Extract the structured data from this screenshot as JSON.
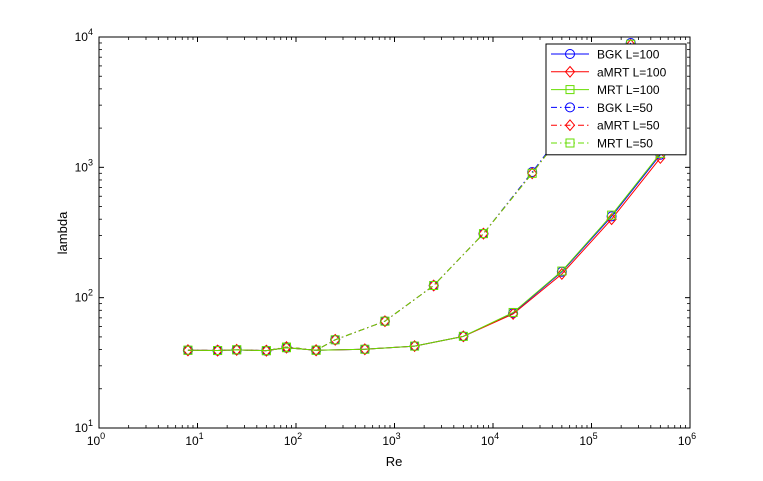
{
  "chart_data": {
    "type": "line",
    "xlabel": "Re",
    "ylabel": "lambda",
    "xscale": "log",
    "yscale": "log",
    "xlim": [
      1,
      1000000
    ],
    "ylim": [
      10,
      10000
    ],
    "grid": false,
    "legend_position": "top-right",
    "x_ticks": [
      {
        "value": 1,
        "base": "10",
        "exp": "0"
      },
      {
        "value": 10,
        "base": "10",
        "exp": "1"
      },
      {
        "value": 100,
        "base": "10",
        "exp": "2"
      },
      {
        "value": 1000,
        "base": "10",
        "exp": "3"
      },
      {
        "value": 10000,
        "base": "10",
        "exp": "4"
      },
      {
        "value": 100000,
        "base": "10",
        "exp": "5"
      },
      {
        "value": 1000000,
        "base": "10",
        "exp": "6"
      }
    ],
    "y_ticks": [
      {
        "value": 10,
        "base": "10",
        "exp": "1"
      },
      {
        "value": 100,
        "base": "10",
        "exp": "2"
      },
      {
        "value": 1000,
        "base": "10",
        "exp": "3"
      },
      {
        "value": 10000,
        "base": "10",
        "exp": "4"
      }
    ],
    "series": [
      {
        "name": "BGK L=100",
        "color": "#0000ff",
        "marker": "circle",
        "line": "solid",
        "x": [
          8,
          16,
          25,
          50,
          80,
          160,
          500,
          1600,
          5000,
          16000,
          50000,
          160000,
          500000
        ],
        "y": [
          39.5,
          39.3,
          39.8,
          39.2,
          41.3,
          39.5,
          40.2,
          42.5,
          50.5,
          76,
          158,
          420,
          1250
        ]
      },
      {
        "name": "aMRT L=100",
        "color": "#ff0000",
        "marker": "diamond",
        "line": "solid",
        "x": [
          8,
          16,
          25,
          50,
          80,
          160,
          500,
          1600,
          5000,
          16000,
          50000,
          160000,
          500000
        ],
        "y": [
          39.5,
          39.3,
          39.8,
          39.2,
          41.3,
          39.5,
          40.2,
          42.5,
          50.5,
          75,
          152,
          400,
          1180
        ]
      },
      {
        "name": "MRT L=100",
        "color": "#66dd00",
        "marker": "square",
        "line": "solid",
        "x": [
          8,
          16,
          25,
          50,
          80,
          160,
          500,
          1600,
          5000,
          16000,
          50000,
          160000,
          500000
        ],
        "y": [
          39.5,
          39.3,
          39.8,
          39.2,
          41.3,
          39.5,
          40.2,
          42.5,
          50.5,
          77,
          160,
          430,
          1280
        ]
      },
      {
        "name": "BGK L=50",
        "color": "#0000ff",
        "marker": "circle",
        "line": "dashdot",
        "x": [
          8,
          16,
          25,
          50,
          80,
          160,
          250,
          800,
          2500,
          8000,
          25000,
          250000
        ],
        "y": [
          39.5,
          39.3,
          39.8,
          39.2,
          41.8,
          39.5,
          47.5,
          66,
          124,
          310,
          920,
          9000
        ]
      },
      {
        "name": "aMRT L=50",
        "color": "#ff0000",
        "marker": "diamond",
        "line": "dashdot",
        "x": [
          8,
          16,
          25,
          50,
          80,
          160,
          250,
          800,
          2500,
          8000,
          25000,
          250000
        ],
        "y": [
          39.5,
          39.3,
          39.8,
          39.2,
          41.8,
          39.5,
          47.5,
          66,
          124,
          310,
          900,
          8700
        ]
      },
      {
        "name": "MRT L=50",
        "color": "#66dd00",
        "marker": "square",
        "line": "dashdot",
        "x": [
          8,
          16,
          25,
          50,
          80,
          160,
          250,
          800,
          2500,
          8000,
          25000,
          250000
        ],
        "y": [
          39.5,
          39.3,
          39.8,
          39.2,
          41.8,
          39.5,
          47.5,
          66,
          124,
          310,
          900,
          8800
        ]
      }
    ]
  }
}
